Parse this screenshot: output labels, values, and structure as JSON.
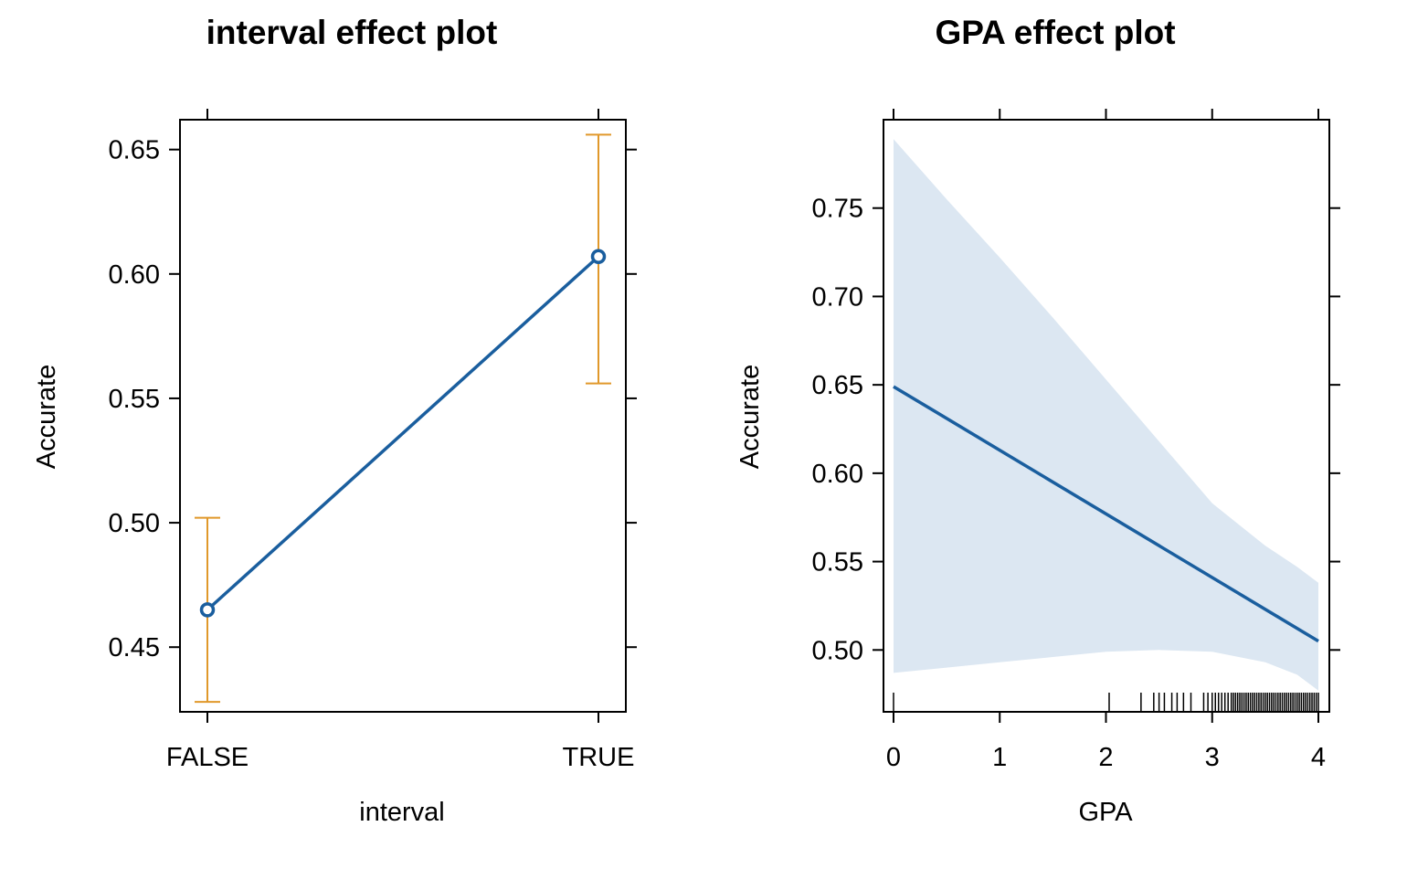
{
  "chart_data": [
    {
      "type": "line",
      "title": "interval effect plot",
      "xlabel": "interval",
      "ylabel": "Accurate",
      "categories": [
        "FALSE",
        "TRUE"
      ],
      "values": [
        0.465,
        0.607
      ],
      "lower": [
        0.428,
        0.556
      ],
      "upper": [
        0.502,
        0.656
      ],
      "ylim": [
        0.424,
        0.662
      ],
      "yticks": [
        "0.45",
        "0.50",
        "0.55",
        "0.60",
        "0.65"
      ],
      "line_color": "#1a5e9e",
      "errorbar_color": "#e0982a",
      "grid": false
    },
    {
      "type": "line",
      "title": "GPA effect plot",
      "xlabel": "GPA",
      "ylabel": "Accurate",
      "xlim": [
        -0.1,
        4.1
      ],
      "ylim": [
        0.465,
        0.8
      ],
      "xticks": [
        "0",
        "1",
        "2",
        "3",
        "4"
      ],
      "yticks": [
        "0.50",
        "0.55",
        "0.60",
        "0.65",
        "0.70",
        "0.75"
      ],
      "x": [
        0,
        4
      ],
      "y": [
        0.649,
        0.505
      ],
      "band": {
        "x": [
          0,
          0.5,
          1,
          1.5,
          2,
          2.5,
          3,
          3.5,
          3.8,
          4
        ],
        "lower": [
          0.487,
          0.49,
          0.493,
          0.496,
          0.499,
          0.5,
          0.499,
          0.493,
          0.486,
          0.477
        ],
        "upper": [
          0.789,
          0.755,
          0.722,
          0.688,
          0.653,
          0.618,
          0.583,
          0.559,
          0.547,
          0.538
        ]
      },
      "rug": [
        0,
        2.03,
        2.33,
        2.45,
        2.5,
        2.55,
        2.62,
        2.67,
        2.73,
        2.8,
        2.92,
        2.96,
        3.0,
        3.03,
        3.06,
        3.09,
        3.12,
        3.15,
        3.18,
        3.2,
        3.22,
        3.24,
        3.26,
        3.28,
        3.3,
        3.32,
        3.34,
        3.36,
        3.38,
        3.4,
        3.42,
        3.44,
        3.46,
        3.48,
        3.5,
        3.52,
        3.54,
        3.56,
        3.58,
        3.6,
        3.62,
        3.64,
        3.66,
        3.68,
        3.7,
        3.72,
        3.74,
        3.76,
        3.78,
        3.8,
        3.82,
        3.84,
        3.86,
        3.88,
        3.9,
        3.92,
        3.94,
        3.96,
        3.98,
        4.0
      ],
      "line_color": "#1a5e9e",
      "band_color": "#dce7f2",
      "grid": false
    }
  ]
}
